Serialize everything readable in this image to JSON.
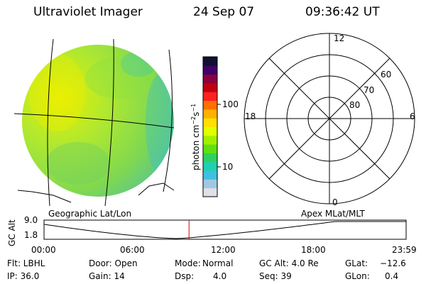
{
  "header": {
    "instrument": "Ultraviolet Imager",
    "date": "24 Sep 07",
    "time": "09:36:42 UT"
  },
  "colorbar": {
    "unit_label": "photon cm",
    "unit_exp1": "−2",
    "unit_s": "s",
    "unit_exp2": "−1",
    "ticks": [
      "100",
      "10"
    ],
    "colors": [
      "#101030",
      "#40006a",
      "#8a0040",
      "#c00010",
      "#ff2020",
      "#ff7000",
      "#ffb000",
      "#ffe000",
      "#e0ff00",
      "#a0f000",
      "#60e010",
      "#30d060",
      "#20d0b0",
      "#40c0e0",
      "#a0c8e0",
      "#e0e0e8"
    ]
  },
  "left_panel": {
    "label": "Geographic Lat/Lon"
  },
  "right_panel": {
    "label": "Apex MLat/MLT",
    "mlt_labels": {
      "top": "12",
      "left": "18",
      "right": "6",
      "bottom": "0"
    },
    "mlat_labels": [
      "60",
      "70",
      "80"
    ]
  },
  "altitude_plot": {
    "ylabel": "GC Alt",
    "y_ticks": [
      "9.0",
      "1.8"
    ],
    "x_ticks": [
      "00:00",
      "06:00",
      "12:00",
      "18:00",
      "23:59"
    ],
    "marker_time": "09:36:42",
    "line_color": "#000000",
    "marker_color": "#e00000"
  },
  "info": {
    "row1": {
      "flt": "Flt: LBHL",
      "door": "Door: Open",
      "mode_label": "Mode:",
      "mode_value": "Normal",
      "gcalt": "GC Alt: 4.0 Re",
      "glat_label": "GLat:",
      "glat_value": "−12.6"
    },
    "row2": {
      "ip": "IP: 36.0",
      "gain": "Gain: 14",
      "dsp_label": "Dsp:",
      "dsp_value": "4.0",
      "seq": "Seq: 39",
      "glon_label": "GLon:",
      "glon_value": "0.4"
    }
  }
}
